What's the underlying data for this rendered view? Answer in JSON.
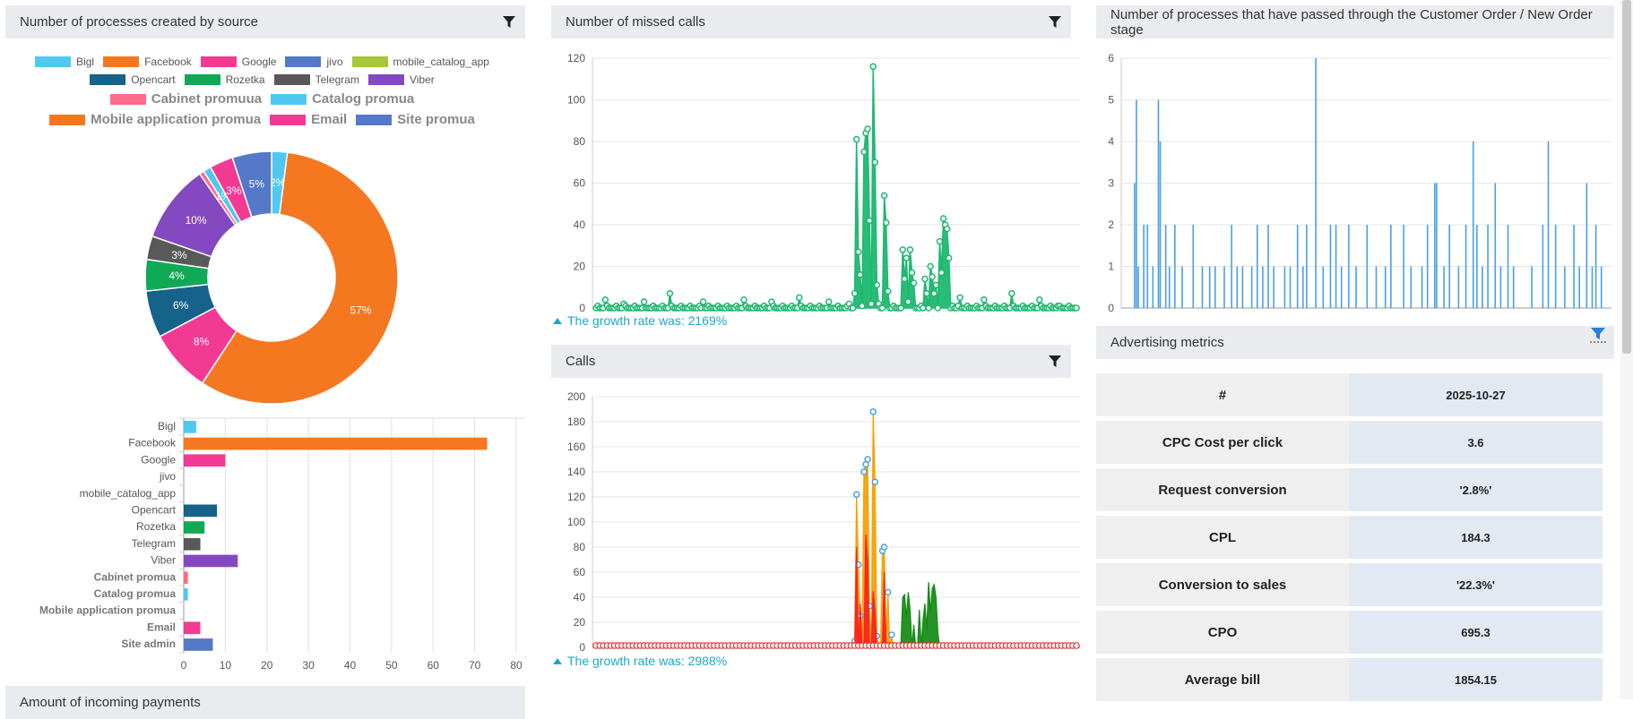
{
  "panels": {
    "source": {
      "title": "Number of processes created by source"
    },
    "missed": {
      "title": "Number of missed calls",
      "growth": "The growth rate was: 2169%"
    },
    "stage": {
      "title": "Number of processes that have passed through the Customer Order / New Order stage"
    },
    "calls": {
      "title": "Calls",
      "growth": "The growth rate was: 2988%"
    },
    "advertising": {
      "title": "Advertising metrics"
    },
    "payments": {
      "title": "Amount of incoming payments"
    }
  },
  "legend": [
    {
      "label": "Bigl",
      "color": "#4fc9f1",
      "big": false
    },
    {
      "label": "Facebook",
      "color": "#f57720",
      "big": false
    },
    {
      "label": "Google",
      "color": "#f23a93",
      "big": false
    },
    {
      "label": "jivo",
      "color": "#5479c8",
      "big": false
    },
    {
      "label": "mobile_catalog_app",
      "color": "#a7c639",
      "big": false
    },
    {
      "label": "Opencart",
      "color": "#15628a",
      "big": false
    },
    {
      "label": "Rozetka",
      "color": "#10a955",
      "big": false
    },
    {
      "label": "Telegram",
      "color": "#595959",
      "big": false
    },
    {
      "label": "Viber",
      "color": "#8449c0",
      "big": false
    },
    {
      "label": "Cabinet promuua",
      "color": "#ff6b8b",
      "big": true
    },
    {
      "label": "Catalog promua",
      "color": "#4fc9f1",
      "big": true
    },
    {
      "label": "Mobile application promua",
      "color": "#f57720",
      "big": true
    },
    {
      "label": "Email",
      "color": "#f23a93",
      "big": true
    },
    {
      "label": "Site promua",
      "color": "#5479c8",
      "big": true
    }
  ],
  "metrics": {
    "header": {
      "key": "#",
      "value": "2025-10-27"
    },
    "rows": [
      {
        "key": "CPC Cost per click",
        "value": "3.6"
      },
      {
        "key": "Request conversion",
        "value": "'2.8%'"
      },
      {
        "key": "CPL",
        "value": "184.3"
      },
      {
        "key": "Conversion to sales",
        "value": "'22.3%'"
      },
      {
        "key": "CPO",
        "value": "695.3"
      },
      {
        "key": "Average bill",
        "value": "1854.15"
      }
    ]
  },
  "chart_data": [
    {
      "type": "pie",
      "donut": true,
      "slices": [
        {
          "label": "Bigl",
          "value": 2,
          "color": "#4fc9f1",
          "display": "2%"
        },
        {
          "label": "Facebook",
          "value": 57,
          "color": "#f57720",
          "display": "57%"
        },
        {
          "label": "Google",
          "value": 8,
          "color": "#f23a93",
          "display": "8%"
        },
        {
          "label": "Opencart",
          "value": 6,
          "color": "#15628a",
          "display": "6%"
        },
        {
          "label": "Rozetka",
          "value": 4,
          "color": "#10a955",
          "display": "4%"
        },
        {
          "label": "Telegram",
          "value": 3,
          "color": "#595959",
          "display": "3%"
        },
        {
          "label": "Viber",
          "value": 10,
          "color": "#8449c0",
          "display": "10%"
        },
        {
          "label": "Cabinet promuua",
          "value": 0.6,
          "color": "#ff6b8b",
          "display": ""
        },
        {
          "label": "Catalog promua",
          "value": 1,
          "color": "#4fc9f1",
          "display": "1%"
        },
        {
          "label": "Email",
          "value": 3,
          "color": "#f23a93",
          "display": "3%"
        },
        {
          "label": "Site promua",
          "value": 5,
          "color": "#5479c8",
          "display": "5%"
        }
      ]
    },
    {
      "type": "bar",
      "orientation": "horizontal",
      "categories": [
        "Bigl",
        "Facebook",
        "Google",
        "jivo",
        "mobile_catalog_app",
        "Opencart",
        "Rozetka",
        "Telegram",
        "Viber",
        "Cabinet promua",
        "Catalog promua",
        "Mobile application promua",
        "Email",
        "Site admin"
      ],
      "bold": [
        false,
        false,
        false,
        false,
        false,
        false,
        false,
        false,
        false,
        true,
        true,
        true,
        true,
        true
      ],
      "values": [
        3,
        73,
        10,
        0,
        0,
        8,
        5,
        4,
        13,
        1,
        1,
        0,
        4,
        7
      ],
      "colors": [
        "#4fc9f1",
        "#f57720",
        "#f23a93",
        "#5479c8",
        "#a7c639",
        "#15628a",
        "#10a955",
        "#595959",
        "#8449c0",
        "#ff6b8b",
        "#4fc9f1",
        "#f57720",
        "#f23a93",
        "#5479c8"
      ],
      "xlim": [
        0,
        80
      ],
      "xticks": [
        0,
        10,
        20,
        30,
        40,
        50,
        60,
        70,
        80
      ],
      "grid": true
    },
    {
      "type": "line",
      "name": "missed",
      "color": "#1db870",
      "ylim": [
        0,
        120
      ],
      "yticks": [
        0,
        20,
        40,
        60,
        80,
        100,
        120
      ],
      "x_count": 180,
      "spikes": [
        [
          0,
          0
        ],
        [
          5,
          4
        ],
        [
          15,
          2
        ],
        [
          26,
          3
        ],
        [
          40,
          7
        ],
        [
          58,
          3
        ],
        [
          80,
          4
        ],
        [
          95,
          3
        ],
        [
          110,
          5
        ],
        [
          126,
          3
        ],
        [
          137,
          2
        ],
        [
          140,
          7
        ],
        [
          141,
          81
        ],
        [
          142,
          27
        ],
        [
          143,
          16
        ],
        [
          144,
          1
        ],
        [
          145,
          75
        ],
        [
          146,
          84
        ],
        [
          147,
          86
        ],
        [
          148,
          42
        ],
        [
          149,
          2
        ],
        [
          150,
          116
        ],
        [
          151,
          70
        ],
        [
          152,
          11
        ],
        [
          153,
          2
        ],
        [
          156,
          54
        ],
        [
          157,
          41
        ],
        [
          158,
          8
        ],
        [
          166,
          28
        ],
        [
          167,
          14
        ],
        [
          168,
          24
        ],
        [
          169,
          3
        ],
        [
          170,
          28
        ],
        [
          171,
          17
        ],
        [
          172,
          12
        ],
        [
          175,
          2
        ],
        [
          178,
          14
        ],
        [
          179,
          7
        ]
      ],
      "spikes2": [
        [
          175,
          0
        ],
        [
          181,
          20
        ],
        [
          182,
          15
        ],
        [
          183,
          7
        ],
        [
          184,
          11
        ],
        [
          186,
          32
        ],
        [
          187,
          17
        ],
        [
          188,
          43
        ],
        [
          189,
          40
        ],
        [
          190,
          38
        ],
        [
          191,
          24
        ],
        [
          193,
          1
        ],
        [
          197,
          5
        ],
        [
          210,
          4
        ],
        [
          225,
          7
        ],
        [
          240,
          4
        ],
        [
          250,
          1
        ]
      ]
    },
    {
      "type": "bar",
      "name": "stage",
      "color": "#4a9fe8",
      "ylim": [
        0,
        6
      ],
      "yticks": [
        0,
        1,
        2,
        3,
        4,
        5,
        6
      ],
      "x_count": 260,
      "spikes": [
        [
          3,
          3
        ],
        [
          4,
          5
        ],
        [
          5,
          1
        ],
        [
          8,
          2
        ],
        [
          10,
          2
        ],
        [
          13,
          1
        ],
        [
          16,
          5
        ],
        [
          17,
          4
        ],
        [
          20,
          2
        ],
        [
          22,
          1
        ],
        [
          25,
          2
        ],
        [
          29,
          1
        ],
        [
          35,
          2
        ],
        [
          40,
          1
        ],
        [
          44,
          1
        ],
        [
          47,
          1
        ],
        [
          52,
          1
        ],
        [
          56,
          2
        ],
        [
          59,
          1
        ],
        [
          62,
          1
        ],
        [
          67,
          1
        ],
        [
          70,
          2
        ],
        [
          73,
          1
        ],
        [
          76,
          2
        ],
        [
          79,
          1
        ],
        [
          85,
          1
        ],
        [
          88,
          1
        ],
        [
          92,
          2
        ],
        [
          95,
          1
        ],
        [
          97,
          2
        ],
        [
          102,
          6
        ],
        [
          106,
          1
        ],
        [
          110,
          2
        ],
        [
          113,
          2
        ],
        [
          116,
          1
        ],
        [
          120,
          2
        ],
        [
          124,
          1
        ],
        [
          130,
          2
        ],
        [
          135,
          1
        ],
        [
          140,
          1
        ],
        [
          143,
          2
        ],
        [
          150,
          2
        ],
        [
          154,
          1
        ],
        [
          160,
          1
        ],
        [
          163,
          2
        ],
        [
          167,
          3
        ],
        [
          168,
          3
        ],
        [
          172,
          1
        ],
        [
          175,
          2
        ],
        [
          180,
          1
        ],
        [
          184,
          2
        ],
        [
          188,
          4
        ],
        [
          190,
          2
        ],
        [
          193,
          1
        ],
        [
          196,
          2
        ],
        [
          200,
          3
        ],
        [
          203,
          1
        ],
        [
          207,
          2
        ],
        [
          210,
          1
        ],
        [
          220,
          1
        ],
        [
          226,
          2
        ],
        [
          229,
          4
        ],
        [
          233,
          2
        ],
        [
          238,
          1
        ],
        [
          243,
          2
        ],
        [
          246,
          1
        ],
        [
          250,
          3
        ],
        [
          253,
          1
        ],
        [
          255,
          2
        ],
        [
          258,
          1
        ]
      ]
    },
    {
      "type": "line",
      "name": "calls",
      "ylim": [
        0,
        200
      ],
      "yticks": [
        0,
        20,
        40,
        60,
        80,
        100,
        120,
        140,
        160,
        180,
        200
      ],
      "series": [
        {
          "color": "#f5a000",
          "spikes": [
            [
              140,
              5
            ],
            [
              141,
              122
            ],
            [
              142,
              66
            ],
            [
              143,
              25
            ],
            [
              145,
              140
            ],
            [
              146,
              146
            ],
            [
              147,
              150
            ],
            [
              148,
              33
            ],
            [
              150,
              188
            ],
            [
              151,
              132
            ],
            [
              152,
              9
            ],
            [
              155,
              77
            ],
            [
              156,
              80
            ],
            [
              158,
              44
            ],
            [
              160,
              10
            ]
          ]
        },
        {
          "color": "#ff2020",
          "spikes": [
            [
              141,
              80
            ],
            [
              143,
              35
            ],
            [
              146,
              90
            ],
            [
              147,
              70
            ],
            [
              150,
              45
            ],
            [
              151,
              30
            ],
            [
              156,
              60
            ]
          ]
        },
        {
          "color": "#128a12",
          "spikes": [
            [
              165,
              2
            ],
            [
              166,
              40
            ],
            [
              167,
              42
            ],
            [
              168,
              24
            ],
            [
              169,
              44
            ],
            [
              170,
              30
            ],
            [
              172,
              18
            ],
            [
              175,
              30
            ],
            [
              177,
              22
            ],
            [
              178,
              35
            ],
            [
              179,
              14
            ],
            [
              180,
              52
            ],
            [
              181,
              28
            ],
            [
              182,
              47
            ],
            [
              183,
              50
            ],
            [
              184,
              40
            ],
            [
              185,
              12
            ]
          ]
        }
      ]
    }
  ]
}
